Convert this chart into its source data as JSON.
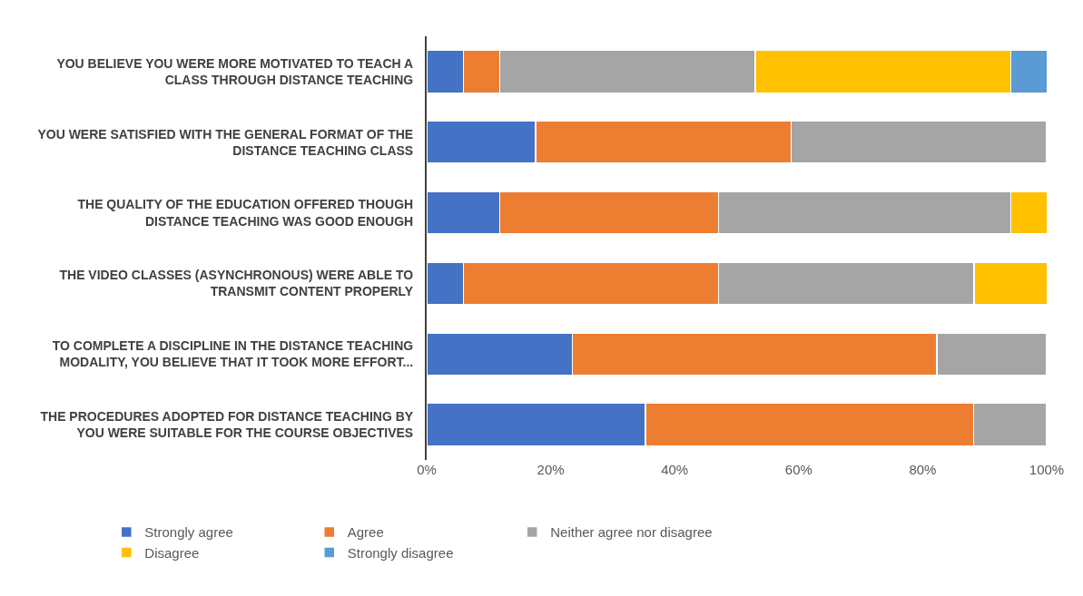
{
  "chart_data": {
    "type": "bar",
    "orientation": "horizontal",
    "stacked": true,
    "categories": [
      "YOU BELIEVE YOU WERE MORE MOTIVATED TO TEACH A CLASS THROUGH DISTANCE TEACHING",
      "YOU WERE SATISFIED WITH THE GENERAL FORMAT OF THE DISTANCE TEACHING CLASS",
      "THE QUALITY OF THE EDUCATION OFFERED THOUGH DISTANCE TEACHING WAS GOOD ENOUGH",
      "THE VIDEO CLASSES (ASYNCHRONOUS) WERE ABLE TO TRANSMIT CONTENT PROPERLY",
      "TO COMPLETE A DISCIPLINE IN THE DISTANCE TEACHING MODALITY, YOU BELIEVE THAT IT TOOK MORE EFFORT...",
      "THE PROCEDURES ADOPTED FOR DISTANCE TEACHING BY YOU WERE SUITABLE FOR THE COURSE OBJECTIVES"
    ],
    "series": [
      {
        "name": "Strongly agree",
        "color": "#4472c4",
        "values": [
          5.9,
          17.6,
          11.8,
          5.9,
          23.5,
          35.3
        ]
      },
      {
        "name": "Agree",
        "color": "#ed7d31",
        "values": [
          5.9,
          41.2,
          35.3,
          41.2,
          58.8,
          52.9
        ]
      },
      {
        "name": "Neither agree nor disagree",
        "color": "#a5a5a5",
        "values": [
          41.2,
          41.2,
          47.1,
          41.2,
          17.6,
          11.8
        ]
      },
      {
        "name": "Disagree",
        "color": "#ffc000",
        "values": [
          41.2,
          null,
          5.9,
          11.8,
          null,
          null
        ]
      },
      {
        "name": "Strongly disagree",
        "color": "#5b9bd5",
        "values": [
          5.9,
          null,
          null,
          null,
          null,
          null
        ]
      }
    ],
    "xlim": [
      0,
      100
    ],
    "xticks": [
      {
        "value": 0,
        "label": "0%"
      },
      {
        "value": 20,
        "label": "20%"
      },
      {
        "value": 40,
        "label": "40%"
      },
      {
        "value": 60,
        "label": "60%"
      },
      {
        "value": 80,
        "label": "80%"
      },
      {
        "value": 100,
        "label": "100%"
      }
    ],
    "legend": "bottom"
  }
}
